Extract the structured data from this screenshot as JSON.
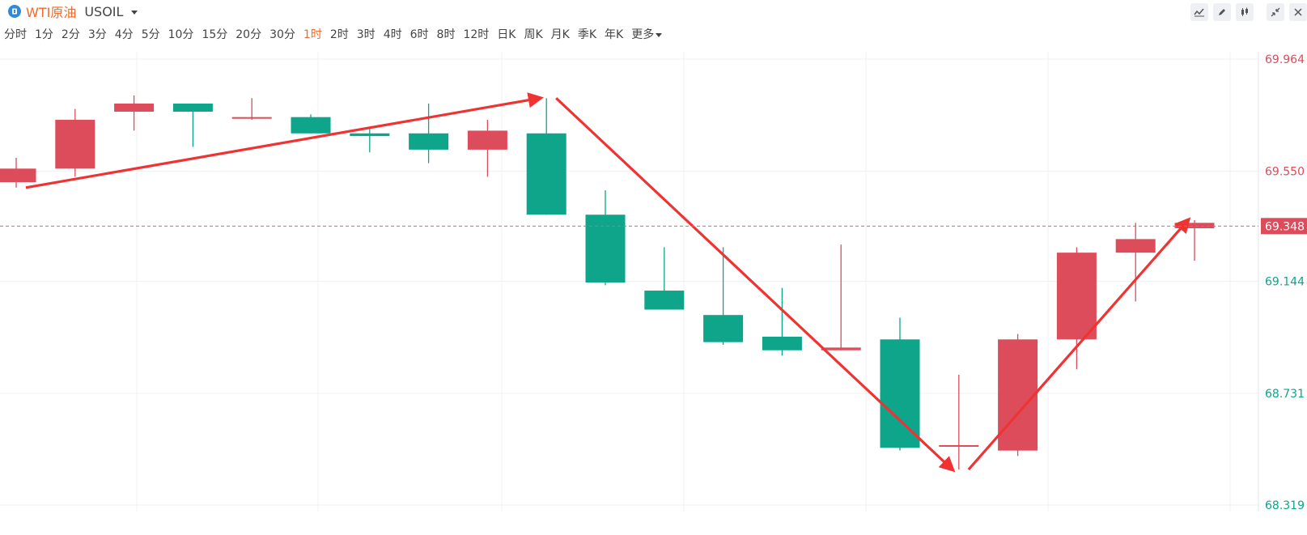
{
  "header": {
    "name": "WTI原油",
    "code": "USOIL",
    "periods": [
      "分时",
      "1分",
      "2分",
      "3分",
      "4分",
      "5分",
      "10分",
      "15分",
      "20分",
      "30分",
      "1时",
      "2时",
      "3时",
      "4时",
      "6时",
      "8时",
      "12时",
      "日K",
      "周K",
      "月K",
      "季K",
      "年K",
      "更多"
    ],
    "active_period": "1时"
  },
  "toolbar": {
    "icons": [
      "line-chart-icon",
      "pencil-icon",
      "candlestick-icon",
      "collapse-icon",
      "close-icon"
    ]
  },
  "colors": {
    "up": "#dc4c5a",
    "down": "#0ea58a",
    "annotation": "#ef3333",
    "price_line": "#e06070",
    "grid": "#f0f1f3"
  },
  "chart_data": {
    "type": "candlestick",
    "y_axis_ticks": [
      "69.964",
      "69.550",
      "69.144",
      "68.731",
      "68.319"
    ],
    "ylim": [
      68.319,
      69.964
    ],
    "current_price": "69.348",
    "candles": [
      {
        "open": 69.51,
        "close": 69.56,
        "high": 69.6,
        "low": 69.49
      },
      {
        "open": 69.56,
        "close": 69.74,
        "high": 69.78,
        "low": 69.53
      },
      {
        "open": 69.77,
        "close": 69.8,
        "high": 69.83,
        "low": 69.7
      },
      {
        "open": 69.8,
        "close": 69.77,
        "high": 69.79,
        "low": 69.64
      },
      {
        "open": 69.75,
        "close": 69.75,
        "high": 69.82,
        "low": 69.74
      },
      {
        "open": 69.75,
        "close": 69.69,
        "high": 69.76,
        "low": 69.69
      },
      {
        "open": 69.69,
        "close": 69.68,
        "high": 69.71,
        "low": 69.62
      },
      {
        "open": 69.69,
        "close": 69.63,
        "high": 69.8,
        "low": 69.58
      },
      {
        "open": 69.63,
        "close": 69.7,
        "high": 69.74,
        "low": 69.53
      },
      {
        "open": 69.69,
        "close": 69.39,
        "high": 69.82,
        "low": 69.39
      },
      {
        "open": 69.39,
        "close": 69.14,
        "high": 69.48,
        "low": 69.13
      },
      {
        "open": 69.11,
        "close": 69.04,
        "high": 69.27,
        "low": 69.04
      },
      {
        "open": 69.02,
        "close": 68.92,
        "high": 69.27,
        "low": 68.91
      },
      {
        "open": 68.94,
        "close": 68.89,
        "high": 69.12,
        "low": 68.87
      },
      {
        "open": 68.89,
        "close": 68.9,
        "high": 69.28,
        "low": 68.89
      },
      {
        "open": 68.93,
        "close": 68.53,
        "high": 69.01,
        "low": 68.52
      },
      {
        "open": 68.54,
        "close": 68.54,
        "high": 68.8,
        "low": 68.45
      },
      {
        "open": 68.52,
        "close": 68.93,
        "high": 68.95,
        "low": 68.5
      },
      {
        "open": 68.93,
        "close": 69.25,
        "high": 69.27,
        "low": 68.82
      },
      {
        "open": 69.25,
        "close": 69.3,
        "high": 69.36,
        "low": 69.07
      },
      {
        "open": 69.34,
        "close": 69.36,
        "high": 69.37,
        "low": 69.22
      }
    ],
    "annotations": [
      {
        "type": "arrow",
        "from_candle": 0,
        "to_candle": 9,
        "direction": "up"
      },
      {
        "type": "arrow",
        "from_candle": 9,
        "to_candle": 16,
        "direction": "down"
      },
      {
        "type": "arrow",
        "from_candle": 16,
        "to_candle": 20,
        "direction": "up"
      }
    ]
  }
}
